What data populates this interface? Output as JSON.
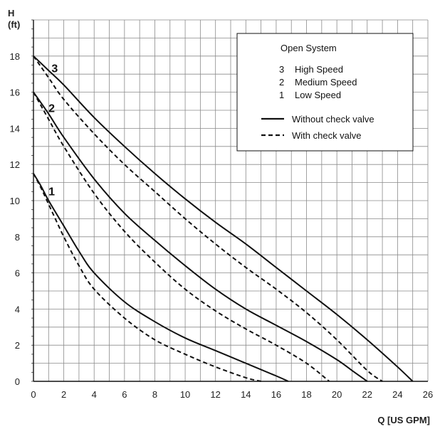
{
  "chart_data": {
    "type": "line",
    "title": "",
    "ylabel_top": "H",
    "ylabel_unit": "(ft)",
    "xlabel": "Q [US GPM]",
    "xlim": [
      0,
      26
    ],
    "ylim": [
      0,
      20
    ],
    "x_ticks": [
      "0",
      "2",
      "4",
      "6",
      "8",
      "10",
      "12",
      "14",
      "16",
      "18",
      "20",
      "22",
      "24",
      "26"
    ],
    "y_ticks": [
      "0",
      "2",
      "4",
      "6",
      "8",
      "10",
      "12",
      "14",
      "16",
      "18"
    ],
    "grid": true,
    "legend": {
      "placement": "top-right",
      "title": "Open System",
      "entries": [
        {
          "num": "3",
          "label": "High Speed"
        },
        {
          "num": "2",
          "label": "Medium Speed"
        },
        {
          "num": "1",
          "label": "Low Speed"
        }
      ],
      "styles": [
        {
          "label": "Without check valve",
          "dash": "solid"
        },
        {
          "label": "With check valve",
          "dash": "dashed"
        }
      ]
    },
    "series": [
      {
        "curve": "3",
        "style": "solid",
        "color": "#111111",
        "x": [
          0,
          1,
          2,
          4,
          6,
          8,
          10,
          12,
          14,
          16,
          18,
          20,
          22,
          24,
          25
        ],
        "y": [
          18,
          17.2,
          16.4,
          14.6,
          13.0,
          11.5,
          10.1,
          8.8,
          7.6,
          6.3,
          5.0,
          3.7,
          2.3,
          0.8,
          0
        ]
      },
      {
        "curve": "3",
        "style": "dashed",
        "color": "#111111",
        "x": [
          0,
          1,
          2,
          4,
          6,
          8,
          10,
          12,
          14,
          16,
          18,
          20,
          22,
          23
        ],
        "y": [
          18,
          16.8,
          15.6,
          13.7,
          12.0,
          10.5,
          9.0,
          7.6,
          6.3,
          5.1,
          3.8,
          2.3,
          0.6,
          0
        ]
      },
      {
        "curve": "2",
        "style": "solid",
        "color": "#111111",
        "x": [
          0,
          1,
          2,
          4,
          6,
          8,
          10,
          12,
          14,
          16,
          18,
          20,
          21,
          22
        ],
        "y": [
          16,
          14.8,
          13.5,
          11.2,
          9.3,
          7.8,
          6.4,
          5.1,
          4.0,
          3.1,
          2.2,
          1.2,
          0.6,
          0
        ]
      },
      {
        "curve": "2",
        "style": "dashed",
        "color": "#111111",
        "x": [
          0,
          1,
          2,
          4,
          6,
          8,
          10,
          12,
          14,
          16,
          18,
          19.5
        ],
        "y": [
          16,
          14.5,
          13.0,
          10.4,
          8.3,
          6.6,
          5.1,
          3.9,
          2.9,
          2.0,
          1.0,
          0
        ]
      },
      {
        "curve": "1",
        "style": "solid",
        "color": "#111111",
        "x": [
          0,
          0.5,
          1,
          2,
          3,
          4,
          6,
          8,
          10,
          12,
          14,
          16,
          16.8
        ],
        "y": [
          11.5,
          10.8,
          10.0,
          8.6,
          7.2,
          6.0,
          4.4,
          3.3,
          2.4,
          1.7,
          1.0,
          0.3,
          0
        ]
      },
      {
        "curve": "1",
        "style": "dashed",
        "color": "#111111",
        "x": [
          0,
          0.5,
          1,
          2,
          3,
          4,
          6,
          8,
          10,
          12,
          14,
          15
        ],
        "y": [
          11.5,
          10.7,
          9.8,
          8.0,
          6.4,
          5.1,
          3.5,
          2.3,
          1.5,
          0.8,
          0.2,
          0
        ]
      }
    ],
    "curve_labels": [
      {
        "text": "3",
        "x": 1.4,
        "y": 17.1
      },
      {
        "text": "2",
        "x": 1.2,
        "y": 14.9
      },
      {
        "text": "1",
        "x": 1.2,
        "y": 10.3
      }
    ]
  }
}
